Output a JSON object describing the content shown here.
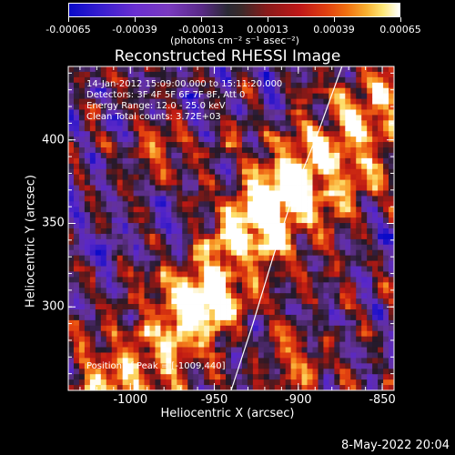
{
  "colorbar": {
    "ticks": [
      "-0.00065",
      "-0.00039",
      "-0.00013",
      "0.00013",
      "0.00039",
      "0.00065"
    ],
    "units": "(photons cm⁻² s⁻¹ asec⁻²)"
  },
  "title": "Reconstructed RHESSI Image",
  "annotations": {
    "time_range": "14-Jan-2012 15:09:00.000 to 15:11:20.000",
    "detectors": "Detectors: 3F 4F 5F 6F 7F 8F, Att 0",
    "energy": "Energy Range: 12.0 - 25.0 keV",
    "clean": "Clean     Total counts: 3.72E+03",
    "peak": "Position of Peak = [-1009,440]"
  },
  "footer": "8-May-2022 20:04",
  "chart_data": {
    "type": "heatmap",
    "title": "Reconstructed RHESSI Image",
    "xlabel": "Heliocentric X (arcsec)",
    "ylabel": "Heliocentric Y (arcsec)",
    "xlim": [
      -1037,
      -843
    ],
    "ylim": [
      250,
      444
    ],
    "x_ticks": [
      "-1000",
      "-950",
      "-900",
      "-850"
    ],
    "y_ticks": [
      "400",
      "350",
      "300"
    ],
    "x_tick_values": [
      -1000,
      -950,
      -900,
      -850
    ],
    "y_tick_values": [
      400,
      350,
      300
    ],
    "color_range": [
      -0.00065,
      0.00065
    ],
    "limb_points": [
      [
        -940,
        250
      ],
      [
        -927,
        290
      ],
      [
        -915,
        330
      ],
      [
        -902,
        370
      ],
      [
        -888,
        405
      ],
      [
        -874,
        444
      ]
    ],
    "bright_ridges": [
      {
        "center": [
          -955,
          305
        ],
        "intensity": 0.00055
      },
      {
        "center": [
          -925,
          355
        ],
        "intensity": 0.0006
      },
      {
        "center": [
          -905,
          375
        ],
        "intensity": 0.00065
      },
      {
        "center": [
          -985,
          395
        ],
        "intensity": 0.0005
      },
      {
        "center": [
          -895,
          262
        ],
        "intensity": 0.0006
      }
    ]
  }
}
